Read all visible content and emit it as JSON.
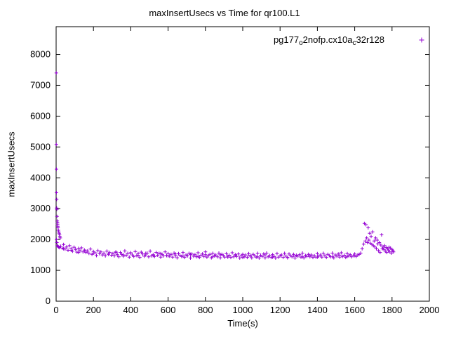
{
  "chart_data": {
    "type": "scatter",
    "title": "maxInsertUsecs vs Time for qr100.L1",
    "xlabel": "Time(s)",
    "ylabel": "maxInsertUsecs",
    "xlim": [
      0,
      2000
    ],
    "ylim": [
      0,
      8900
    ],
    "xticks": [
      0,
      200,
      400,
      600,
      800,
      1000,
      1200,
      1400,
      1600,
      1800,
      2000
    ],
    "yticks": [
      0,
      1000,
      2000,
      3000,
      4000,
      5000,
      6000,
      7000,
      8000
    ],
    "grid": false,
    "legend_position": "top-right-inside",
    "marker": "plus",
    "marker_color": "#9400D3",
    "legend": {
      "parts": [
        "pg177",
        "o",
        "2nofp.cx10a",
        "c",
        "32r128"
      ]
    },
    "series_name": "pg177_o2nofp.cx10a_c32r128",
    "points": [
      [
        1,
        7400
      ],
      [
        1,
        5080
      ],
      [
        2,
        4280
      ],
      [
        2,
        3520
      ],
      [
        2,
        2000
      ],
      [
        3,
        3300
      ],
      [
        3,
        3020
      ],
      [
        4,
        2980
      ],
      [
        4,
        1900
      ],
      [
        5,
        2750
      ],
      [
        6,
        2600
      ],
      [
        6,
        1800
      ],
      [
        7,
        2560
      ],
      [
        8,
        2500
      ],
      [
        9,
        2430
      ],
      [
        9,
        1780
      ],
      [
        10,
        2380
      ],
      [
        12,
        2300
      ],
      [
        13,
        1760
      ],
      [
        14,
        2250
      ],
      [
        16,
        2200
      ],
      [
        17,
        1740
      ],
      [
        18,
        2150
      ],
      [
        20,
        2100
      ],
      [
        22,
        2050
      ],
      [
        24,
        1780
      ],
      [
        32,
        1720
      ],
      [
        40,
        1840
      ],
      [
        48,
        1690
      ],
      [
        56,
        1760
      ],
      [
        64,
        1650
      ],
      [
        72,
        1800
      ],
      [
        80,
        1700
      ],
      [
        88,
        1620
      ],
      [
        96,
        1750
      ],
      [
        104,
        1680
      ],
      [
        112,
        1590
      ],
      [
        120,
        1710
      ],
      [
        128,
        1640
      ],
      [
        136,
        1730
      ],
      [
        144,
        1600
      ],
      [
        152,
        1660
      ],
      [
        160,
        1580
      ],
      [
        168,
        1630
      ],
      [
        176,
        1550
      ],
      [
        184,
        1690
      ],
      [
        192,
        1520
      ],
      [
        200,
        1610
      ],
      [
        208,
        1570
      ],
      [
        216,
        1480
      ],
      [
        224,
        1640
      ],
      [
        232,
        1540
      ],
      [
        240,
        1600
      ],
      [
        248,
        1500
      ],
      [
        256,
        1560
      ],
      [
        264,
        1470
      ],
      [
        272,
        1620
      ],
      [
        280,
        1530
      ],
      [
        288,
        1580
      ],
      [
        296,
        1490
      ],
      [
        304,
        1540
      ],
      [
        312,
        1470
      ],
      [
        320,
        1600
      ],
      [
        328,
        1510
      ],
      [
        336,
        1440
      ],
      [
        344,
        1580
      ],
      [
        352,
        1520
      ],
      [
        360,
        1460
      ],
      [
        368,
        1630
      ],
      [
        376,
        1490
      ],
      [
        384,
        1550
      ],
      [
        392,
        1430
      ],
      [
        400,
        1570
      ],
      [
        408,
        1500
      ],
      [
        416,
        1450
      ],
      [
        424,
        1610
      ],
      [
        432,
        1480
      ],
      [
        440,
        1540
      ],
      [
        448,
        1420
      ],
      [
        456,
        1590
      ],
      [
        464,
        1530
      ],
      [
        472,
        1460
      ],
      [
        480,
        1500
      ],
      [
        488,
        1560
      ],
      [
        496,
        1440
      ],
      [
        504,
        1620
      ],
      [
        512,
        1470
      ],
      [
        520,
        1510
      ],
      [
        528,
        1450
      ],
      [
        536,
        1580
      ],
      [
        544,
        1490
      ],
      [
        552,
        1550
      ],
      [
        560,
        1430
      ],
      [
        568,
        1520
      ],
      [
        576,
        1470
      ],
      [
        584,
        1600
      ],
      [
        592,
        1480
      ],
      [
        600,
        1540
      ],
      [
        608,
        1460
      ],
      [
        616,
        1520
      ],
      [
        624,
        1430
      ],
      [
        632,
        1560
      ],
      [
        640,
        1480
      ],
      [
        648,
        1410
      ],
      [
        656,
        1540
      ],
      [
        664,
        1490
      ],
      [
        672,
        1450
      ],
      [
        680,
        1580
      ],
      [
        688,
        1420
      ],
      [
        696,
        1500
      ],
      [
        704,
        1470
      ],
      [
        712,
        1550
      ],
      [
        720,
        1400
      ],
      [
        728,
        1530
      ],
      [
        736,
        1460
      ],
      [
        744,
        1510
      ],
      [
        752,
        1440
      ],
      [
        760,
        1570
      ],
      [
        768,
        1420
      ],
      [
        776,
        1490
      ],
      [
        784,
        1530
      ],
      [
        792,
        1450
      ],
      [
        800,
        1600
      ],
      [
        808,
        1430
      ],
      [
        816,
        1480
      ],
      [
        824,
        1520
      ],
      [
        832,
        1410
      ],
      [
        840,
        1550
      ],
      [
        848,
        1470
      ],
      [
        856,
        1500
      ],
      [
        864,
        1440
      ],
      [
        872,
        1560
      ],
      [
        880,
        1410
      ],
      [
        888,
        1520
      ],
      [
        896,
        1480
      ],
      [
        904,
        1430
      ],
      [
        912,
        1540
      ],
      [
        920,
        1460
      ],
      [
        928,
        1490
      ],
      [
        936,
        1420
      ],
      [
        944,
        1570
      ],
      [
        952,
        1440
      ],
      [
        960,
        1510
      ],
      [
        968,
        1450
      ],
      [
        976,
        1530
      ],
      [
        984,
        1400
      ],
      [
        992,
        1480
      ],
      [
        1000,
        1520
      ],
      [
        1008,
        1440
      ],
      [
        1016,
        1500
      ],
      [
        1024,
        1420
      ],
      [
        1032,
        1540
      ],
      [
        1040,
        1460
      ],
      [
        1048,
        1410
      ],
      [
        1056,
        1520
      ],
      [
        1064,
        1470
      ],
      [
        1072,
        1430
      ],
      [
        1080,
        1550
      ],
      [
        1088,
        1400
      ],
      [
        1096,
        1490
      ],
      [
        1104,
        1450
      ],
      [
        1112,
        1530
      ],
      [
        1120,
        1410
      ],
      [
        1128,
        1560
      ],
      [
        1136,
        1440
      ],
      [
        1144,
        1480
      ],
      [
        1152,
        1420
      ],
      [
        1160,
        1510
      ],
      [
        1168,
        1450
      ],
      [
        1176,
        1400
      ],
      [
        1184,
        1540
      ],
      [
        1192,
        1430
      ],
      [
        1200,
        1470
      ],
      [
        1208,
        1500
      ],
      [
        1216,
        1420
      ],
      [
        1224,
        1550
      ],
      [
        1232,
        1460
      ],
      [
        1240,
        1410
      ],
      [
        1248,
        1530
      ],
      [
        1256,
        1480
      ],
      [
        1264,
        1440
      ],
      [
        1272,
        1520
      ],
      [
        1280,
        1400
      ],
      [
        1288,
        1490
      ],
      [
        1296,
        1460
      ],
      [
        1304,
        1510
      ],
      [
        1312,
        1430
      ],
      [
        1320,
        1560
      ],
      [
        1328,
        1410
      ],
      [
        1336,
        1480
      ],
      [
        1344,
        1450
      ],
      [
        1352,
        1520
      ],
      [
        1360,
        1440
      ],
      [
        1368,
        1500
      ],
      [
        1376,
        1420
      ],
      [
        1384,
        1470
      ],
      [
        1392,
        1430
      ],
      [
        1400,
        1540
      ],
      [
        1408,
        1460
      ],
      [
        1416,
        1500
      ],
      [
        1424,
        1430
      ],
      [
        1432,
        1550
      ],
      [
        1440,
        1470
      ],
      [
        1448,
        1420
      ],
      [
        1456,
        1520
      ],
      [
        1464,
        1480
      ],
      [
        1472,
        1440
      ],
      [
        1480,
        1560
      ],
      [
        1488,
        1410
      ],
      [
        1496,
        1500
      ],
      [
        1504,
        1460
      ],
      [
        1512,
        1530
      ],
      [
        1520,
        1430
      ],
      [
        1528,
        1570
      ],
      [
        1536,
        1450
      ],
      [
        1544,
        1490
      ],
      [
        1552,
        1420
      ],
      [
        1560,
        1540
      ],
      [
        1568,
        1470
      ],
      [
        1576,
        1510
      ],
      [
        1584,
        1440
      ],
      [
        1592,
        1480
      ],
      [
        1600,
        1530
      ],
      [
        1608,
        1450
      ],
      [
        1616,
        1500
      ],
      [
        40,
        1700
      ],
      [
        80,
        1650
      ],
      [
        120,
        1580
      ],
      [
        160,
        1620
      ],
      [
        200,
        1560
      ],
      [
        240,
        1600
      ],
      [
        280,
        1520
      ],
      [
        320,
        1580
      ],
      [
        360,
        1500
      ],
      [
        400,
        1560
      ],
      [
        440,
        1490
      ],
      [
        480,
        1550
      ],
      [
        520,
        1480
      ],
      [
        560,
        1540
      ],
      [
        600,
        1470
      ],
      [
        640,
        1530
      ],
      [
        680,
        1460
      ],
      [
        720,
        1520
      ],
      [
        760,
        1450
      ],
      [
        800,
        1510
      ],
      [
        840,
        1440
      ],
      [
        880,
        1500
      ],
      [
        920,
        1430
      ],
      [
        960,
        1490
      ],
      [
        1000,
        1420
      ],
      [
        1040,
        1480
      ],
      [
        1080,
        1440
      ],
      [
        1120,
        1500
      ],
      [
        1160,
        1430
      ],
      [
        1200,
        1470
      ],
      [
        1240,
        1420
      ],
      [
        1280,
        1460
      ],
      [
        1320,
        1440
      ],
      [
        1360,
        1480
      ],
      [
        1400,
        1430
      ],
      [
        1440,
        1470
      ],
      [
        1480,
        1440
      ],
      [
        1520,
        1490
      ],
      [
        1560,
        1450
      ],
      [
        1600,
        1480
      ],
      [
        1624,
        1520
      ],
      [
        1632,
        1560
      ],
      [
        1640,
        1700
      ],
      [
        1648,
        1850
      ],
      [
        1652,
        2520
      ],
      [
        1656,
        1950
      ],
      [
        1660,
        2480
      ],
      [
        1664,
        2050
      ],
      [
        1668,
        1900
      ],
      [
        1672,
        2380
      ],
      [
        1676,
        1980
      ],
      [
        1680,
        2200
      ],
      [
        1684,
        1880
      ],
      [
        1688,
        2100
      ],
      [
        1692,
        1840
      ],
      [
        1696,
        2250
      ],
      [
        1700,
        1800
      ],
      [
        1704,
        1950
      ],
      [
        1708,
        1760
      ],
      [
        1712,
        2050
      ],
      [
        1716,
        1700
      ],
      [
        1720,
        1980
      ],
      [
        1724,
        1860
      ],
      [
        1728,
        1640
      ],
      [
        1732,
        1900
      ],
      [
        1736,
        1580
      ],
      [
        1740,
        1820
      ],
      [
        1744,
        2150
      ],
      [
        1748,
        1700
      ],
      [
        1752,
        1760
      ],
      [
        1756,
        1680
      ],
      [
        1760,
        1800
      ],
      [
        1764,
        1620
      ],
      [
        1768,
        1740
      ],
      [
        1772,
        1580
      ],
      [
        1776,
        1700
      ],
      [
        1780,
        1660
      ],
      [
        1784,
        1750
      ],
      [
        1788,
        1600
      ],
      [
        1792,
        1720
      ],
      [
        1796,
        1560
      ],
      [
        1800,
        1680
      ],
      [
        1804,
        1640
      ],
      [
        1808,
        1600
      ]
    ]
  }
}
